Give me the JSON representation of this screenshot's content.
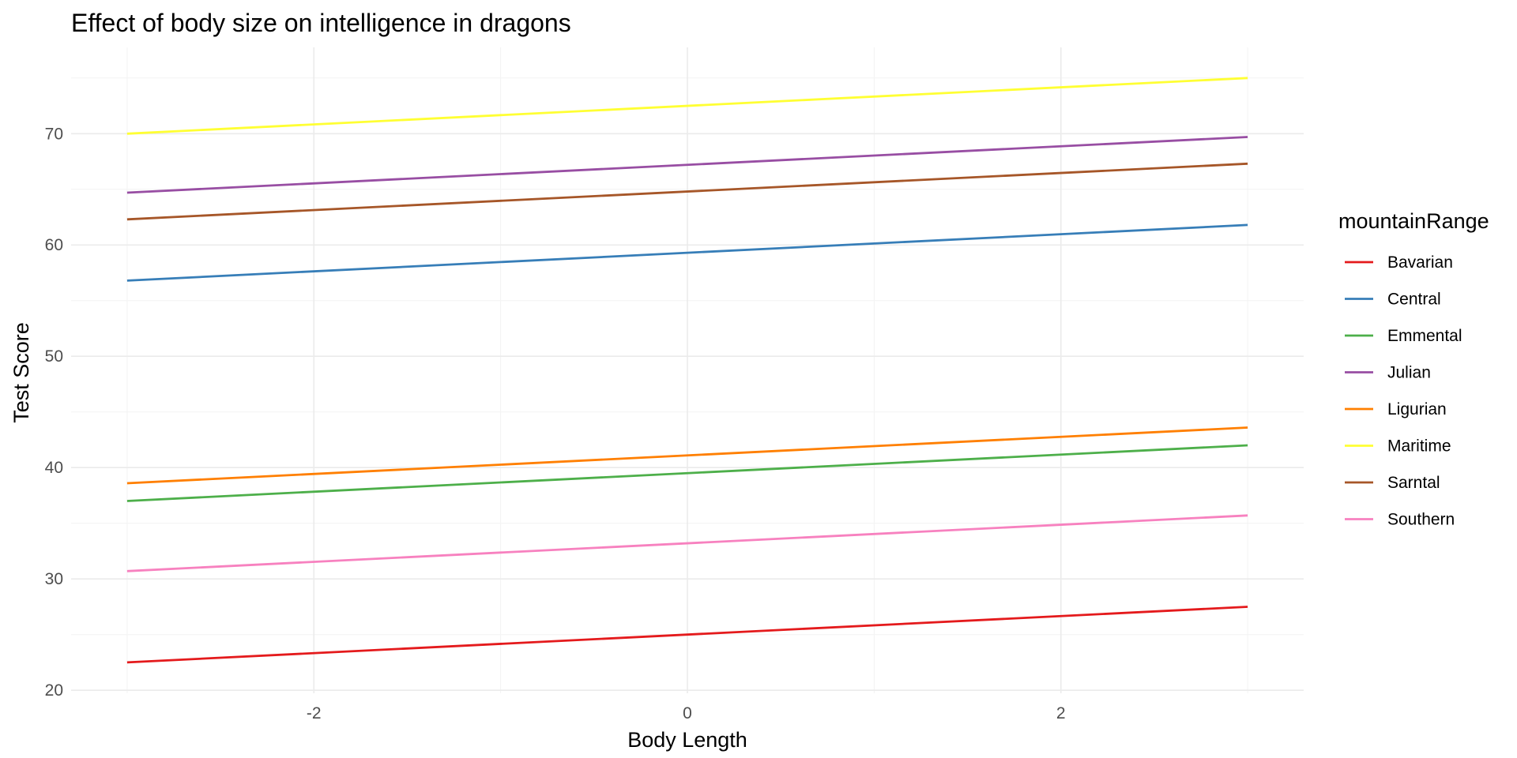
{
  "chart_data": {
    "type": "line",
    "title": "Effect of body size on intelligence in dragons",
    "xlabel": "Body Length",
    "ylabel": "Test Score",
    "xlim": [
      -3,
      3
    ],
    "ylim": [
      20,
      75
    ],
    "x_ticks": [
      -2,
      0,
      2
    ],
    "x_tick_labels": [
      "-2",
      "0",
      "2"
    ],
    "y_ticks": [
      20,
      30,
      40,
      50,
      60,
      70
    ],
    "y_tick_labels": [
      "20",
      "30",
      "40",
      "50",
      "60",
      "70"
    ],
    "grid": true,
    "legend": {
      "title": "mountainRange",
      "position": "right"
    },
    "series": [
      {
        "name": "Bavarian",
        "color": "#e41a1c",
        "x": [
          -3,
          3
        ],
        "y": [
          22.5,
          27.5
        ]
      },
      {
        "name": "Central",
        "color": "#377eb8",
        "x": [
          -3,
          3
        ],
        "y": [
          56.8,
          61.8
        ]
      },
      {
        "name": "Emmental",
        "color": "#4daf4a",
        "x": [
          -3,
          3
        ],
        "y": [
          37.0,
          42.0
        ]
      },
      {
        "name": "Julian",
        "color": "#984ea3",
        "x": [
          -3,
          3
        ],
        "y": [
          64.7,
          69.7
        ]
      },
      {
        "name": "Ligurian",
        "color": "#ff7f00",
        "x": [
          -3,
          3
        ],
        "y": [
          38.6,
          43.6
        ]
      },
      {
        "name": "Maritime",
        "color": "#ffff33",
        "x": [
          -3,
          3
        ],
        "y": [
          70.0,
          75.0
        ]
      },
      {
        "name": "Sarntal",
        "color": "#a65628",
        "x": [
          -3,
          3
        ],
        "y": [
          62.3,
          67.3
        ]
      },
      {
        "name": "Southern",
        "color": "#f781bf",
        "x": [
          -3,
          3
        ],
        "y": [
          30.7,
          35.7
        ]
      }
    ]
  }
}
